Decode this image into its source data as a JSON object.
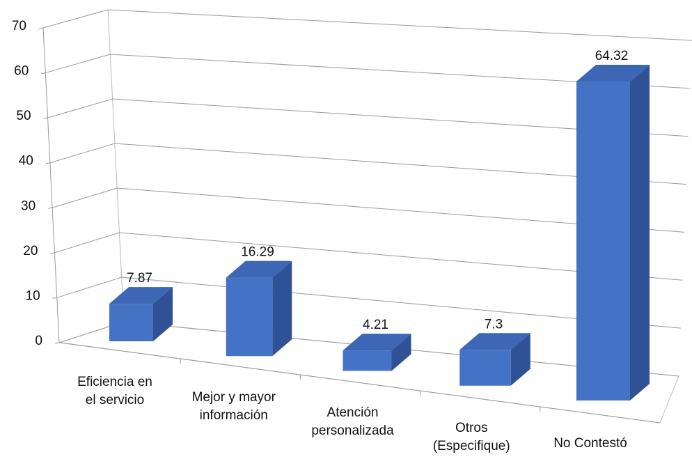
{
  "chart_data": {
    "type": "bar3d",
    "categories": [
      "Eficiencia en\nel servicio",
      "Mejor y mayor\ninformación",
      "Atención\npersonalizada",
      "Otros\n(Especifique)",
      "No Contestó"
    ],
    "values": [
      7.87,
      16.29,
      4.21,
      7.3,
      64.32
    ],
    "color": "#4472c4",
    "ylim": [
      0,
      70
    ],
    "yticks": [
      0,
      10,
      20,
      30,
      40,
      50,
      60,
      70
    ],
    "grid": true
  }
}
